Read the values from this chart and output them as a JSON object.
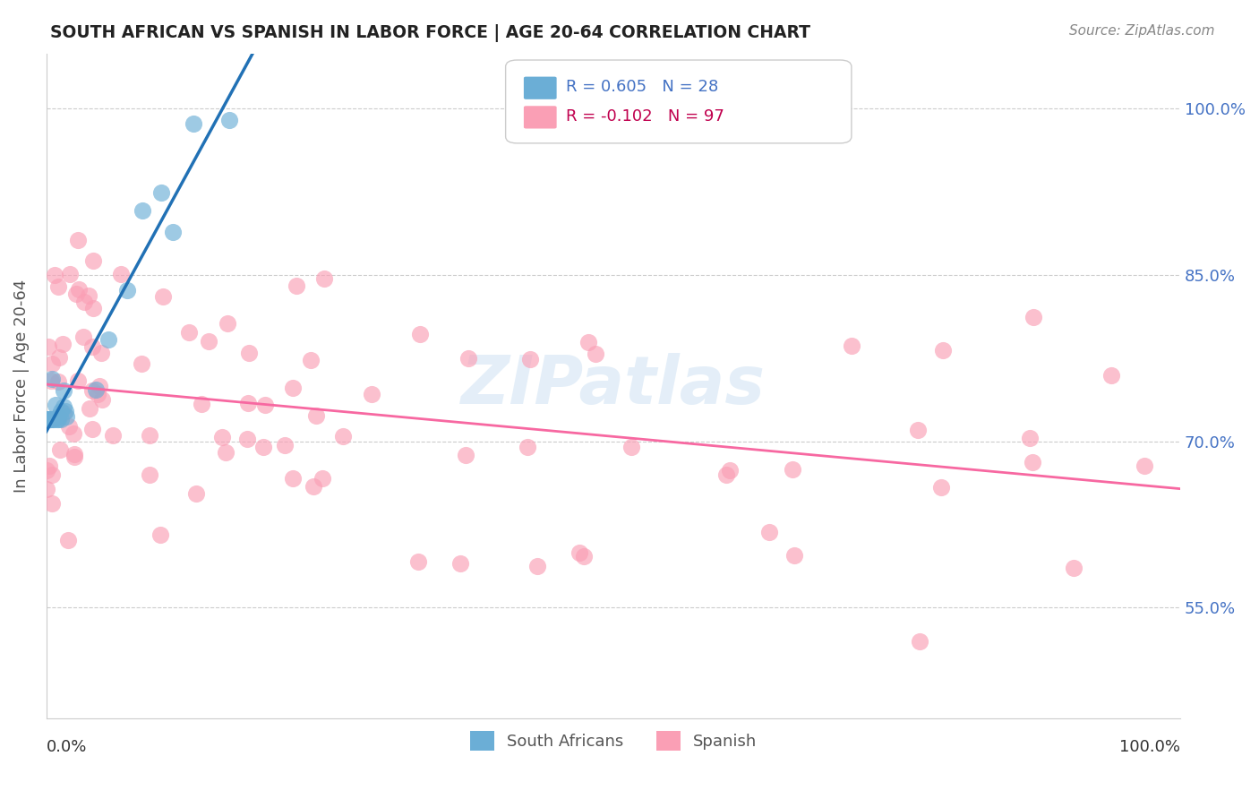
{
  "title": "SOUTH AFRICAN VS SPANISH IN LABOR FORCE | AGE 20-64 CORRELATION CHART",
  "source": "Source: ZipAtlas.com",
  "ylabel": "In Labor Force | Age 20-64",
  "ytick_labels": [
    "55.0%",
    "70.0%",
    "85.0%",
    "100.0%"
  ],
  "ytick_values": [
    0.55,
    0.7,
    0.85,
    1.0
  ],
  "xlim": [
    0.0,
    1.0
  ],
  "ylim": [
    0.45,
    1.05
  ],
  "watermark": "ZIPatlas",
  "blue_color": "#6baed6",
  "pink_color": "#fa9fb5",
  "blue_line_color": "#2171b5",
  "pink_line_color": "#f768a1",
  "legend_r1_text": "R = 0.605   N = 28",
  "legend_r2_text": "R = -0.102   N = 97",
  "legend_r1_color": "#4472c4",
  "legend_r2_color": "#c0004e",
  "sa_seed": 42,
  "sp_seed": 99
}
